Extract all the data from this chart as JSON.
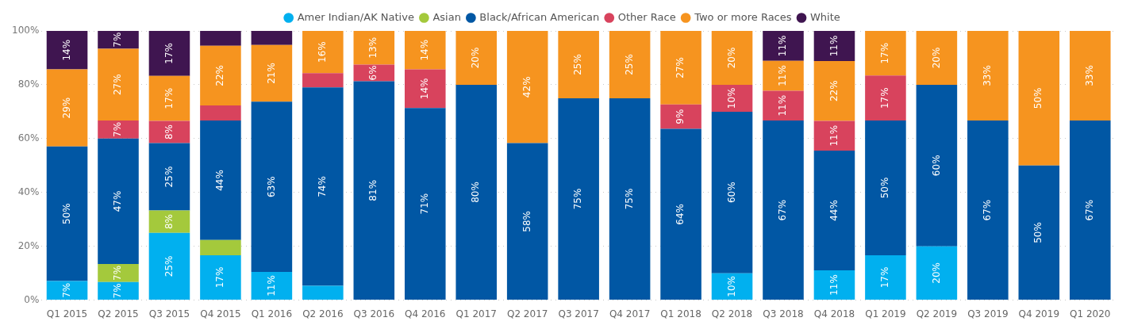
{
  "chart_data": {
    "type": "bar",
    "stacked": true,
    "legend": "top",
    "grid": "y",
    "categories": [
      "Q1 2015",
      "Q2 2015",
      "Q3 2015",
      "Q4 2015",
      "Q1 2016",
      "Q2 2016",
      "Q3 2016",
      "Q4 2016",
      "Q1 2017",
      "Q2 2017",
      "Q3 2017",
      "Q4 2017",
      "Q1 2018",
      "Q2 2018",
      "Q3 2018",
      "Q4 2018",
      "Q1 2019",
      "Q2 2019",
      "Q3 2019",
      "Q4 2019",
      "Q1 2020"
    ],
    "ylim": [
      0,
      100
    ],
    "yticks": [
      {
        "value": 0,
        "label": "0%"
      },
      {
        "value": 20,
        "label": "20%"
      },
      {
        "value": 40,
        "label": "40%"
      },
      {
        "value": 60,
        "label": "60%"
      },
      {
        "value": 80,
        "label": "80%"
      },
      {
        "value": 100,
        "label": "100%"
      }
    ],
    "series": [
      {
        "name": "Amer Indian/AK Native",
        "color": "#01b0ef",
        "values": [
          7.1,
          6.7,
          25,
          16.7,
          10.5,
          5.3,
          null,
          null,
          null,
          null,
          null,
          null,
          null,
          10,
          null,
          11.1,
          16.7,
          20,
          null,
          null,
          null
        ],
        "value_labels": [
          "7%",
          "7%",
          "25%",
          "17%",
          "11%",
          null,
          null,
          null,
          null,
          null,
          null,
          null,
          null,
          "10%",
          null,
          "11%",
          "17%",
          "20%",
          null,
          null,
          null
        ]
      },
      {
        "name": "Asian",
        "color": "#a4c93c",
        "values": [
          null,
          6.7,
          8.3,
          5.6,
          null,
          null,
          null,
          null,
          null,
          null,
          null,
          null,
          null,
          null,
          null,
          null,
          null,
          null,
          null,
          null,
          null
        ],
        "value_labels": [
          null,
          "7%",
          "8%",
          null,
          null,
          null,
          null,
          null,
          null,
          null,
          null,
          null,
          null,
          null,
          null,
          null,
          null,
          null,
          null,
          null,
          null
        ]
      },
      {
        "name": "Black/African American",
        "color": "#0157a4",
        "values": [
          50,
          46.6,
          25,
          44.4,
          63.2,
          73.7,
          81.3,
          71.4,
          80,
          58.3,
          75,
          75,
          63.6,
          60,
          66.7,
          44.4,
          50,
          60,
          66.7,
          50,
          66.7
        ],
        "value_labels": [
          "50%",
          "47%",
          "25%",
          "44%",
          "63%",
          "74%",
          "81%",
          "71%",
          "80%",
          "58%",
          "75%",
          "75%",
          "64%",
          "60%",
          "67%",
          "44%",
          "50%",
          "60%",
          "67%",
          "50%",
          "67%"
        ]
      },
      {
        "name": "Other Race",
        "color": "#d8435d",
        "values": [
          null,
          6.7,
          8.3,
          5.6,
          null,
          5.3,
          6.2,
          14.3,
          null,
          null,
          null,
          null,
          9.1,
          10,
          11.1,
          11.1,
          16.7,
          null,
          null,
          null,
          null
        ],
        "value_labels": [
          null,
          "7%",
          "8%",
          null,
          null,
          null,
          "6%",
          "14%",
          null,
          null,
          null,
          null,
          "9%",
          "10%",
          "11%",
          "11%",
          "17%",
          null,
          null,
          null,
          null
        ]
      },
      {
        "name": "Two or more Races",
        "color": "#f6941f",
        "values": [
          28.6,
          26.7,
          16.7,
          22.2,
          21.1,
          15.7,
          12.5,
          14.3,
          20,
          41.7,
          25,
          25,
          27.3,
          20,
          11.1,
          22.2,
          16.6,
          20,
          33.3,
          50,
          33.3
        ],
        "value_labels": [
          "29%",
          "27%",
          "17%",
          "22%",
          "21%",
          "16%",
          "13%",
          "14%",
          "20%",
          "42%",
          "25%",
          "25%",
          "27%",
          "20%",
          "11%",
          "22%",
          "17%",
          "20%",
          "33%",
          "50%",
          "33%"
        ]
      },
      {
        "name": "White",
        "color": "#3f1550",
        "values": [
          14.3,
          6.6,
          16.7,
          5.5,
          5.2,
          null,
          null,
          null,
          null,
          null,
          null,
          null,
          null,
          null,
          11.1,
          11.2,
          null,
          null,
          null,
          null,
          null
        ],
        "value_labels": [
          "14%",
          "7%",
          "17%",
          null,
          null,
          null,
          null,
          null,
          null,
          null,
          null,
          null,
          null,
          null,
          "11%",
          "11%",
          null,
          null,
          null,
          null,
          null
        ]
      }
    ]
  }
}
